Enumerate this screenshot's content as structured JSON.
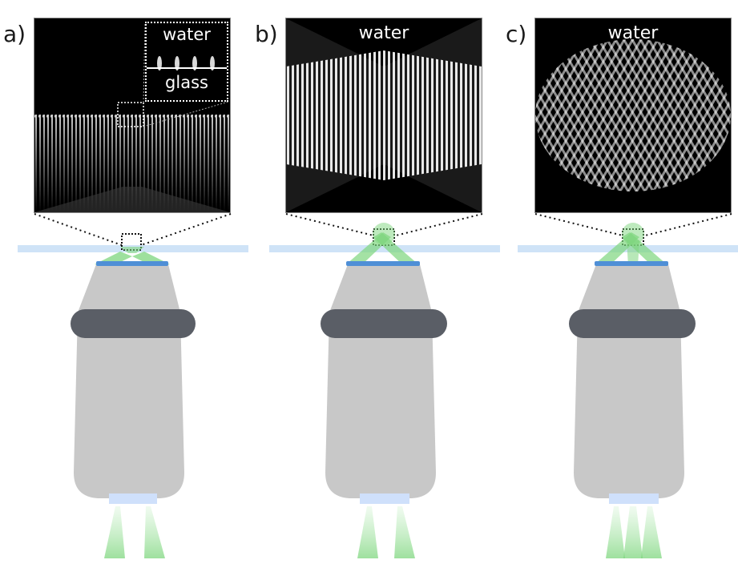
{
  "panels": [
    {
      "id": "a",
      "label": "a)",
      "top_medium": "water",
      "inset_bottom_medium": "glass"
    },
    {
      "id": "b",
      "label": "b)",
      "top_medium": "water"
    },
    {
      "id": "c",
      "label": "c)",
      "top_medium": "water"
    }
  ],
  "colors": {
    "background": "#ffffff",
    "objective_body": "#c8c8c8",
    "objective_ring": "#5a5e66",
    "coverslip": "#cfe3f7",
    "front_lens": "#4f8fd6",
    "beam_green": "#7ed67e",
    "back_aperture": "#cfe0fb",
    "field_background": "#000000"
  },
  "icons": {
    "zoom_indicator": "dotted-zoom-lines",
    "objective": "microscope-objective-lens"
  }
}
